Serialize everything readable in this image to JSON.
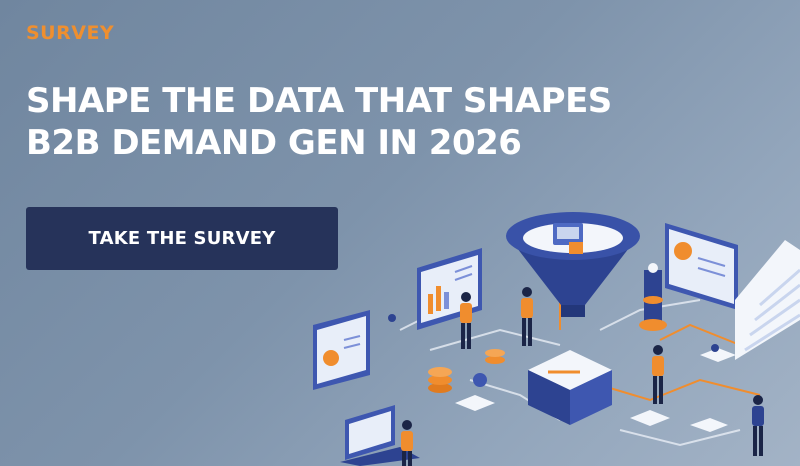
{
  "banner": {
    "eyebrow": "SURVEY",
    "headline": [
      "SHAPE THE DATA THAT SHAPES",
      "B2B DEMAND GEN IN 2026"
    ],
    "cta_label": "TAKE THE SURVEY"
  },
  "colors": {
    "accent": "#ef8f2f",
    "cta_background": "#26335a",
    "headline_text": "#ffffff",
    "background_start": "#70869f",
    "background_end": "#a3b3c6"
  },
  "illustration": {
    "icons": [
      "funnel-icon",
      "monitor-icon",
      "dashboard-icon",
      "server-icon",
      "coin-stack-icon",
      "box-icon",
      "staircase-icon",
      "person-icon"
    ]
  }
}
